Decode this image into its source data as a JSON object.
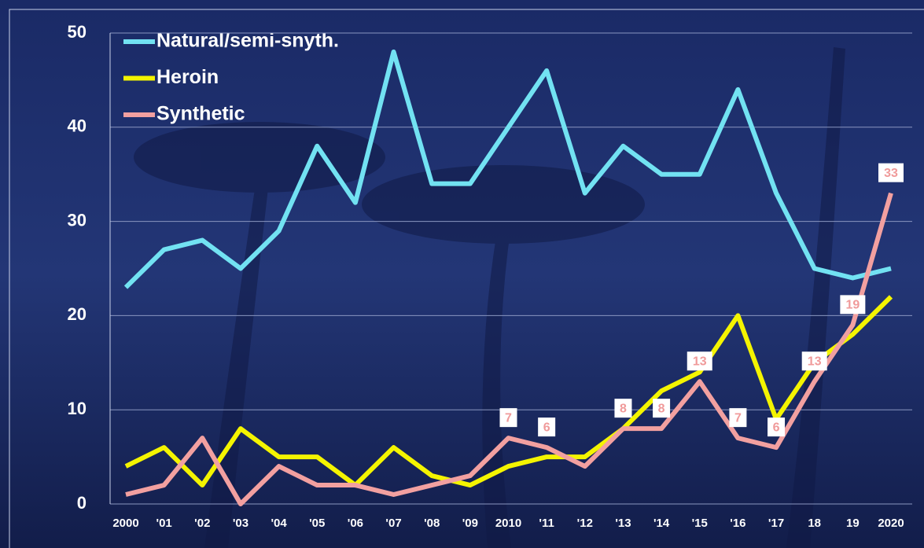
{
  "chart_data": {
    "type": "line",
    "categories": [
      "2000",
      "'01",
      "'02",
      "'03",
      "'04",
      "'05",
      "'06",
      "'07",
      "'08",
      "'09",
      "2010",
      "'11",
      "'12",
      "'13",
      "'14",
      "'15",
      "'16",
      "'17",
      "18",
      "19",
      "2020"
    ],
    "series": [
      {
        "name": "Natural/semi-snyth.",
        "color": "#72e2f2",
        "values": [
          23,
          27,
          28,
          25,
          29,
          38,
          32,
          48,
          34,
          34,
          40,
          46,
          33,
          38,
          35,
          35,
          44,
          33,
          25,
          24,
          25
        ]
      },
      {
        "name": "Heroin",
        "color": "#f4f400",
        "values": [
          4,
          6,
          2,
          8,
          5,
          5,
          2,
          6,
          3,
          2,
          4,
          5,
          5,
          8,
          12,
          14,
          20,
          9,
          15,
          18,
          22
        ]
      },
      {
        "name": "Synthetic",
        "color": "#f2a0a0",
        "values": [
          1,
          2,
          7,
          0,
          4,
          2,
          2,
          1,
          2,
          3,
          7,
          6,
          4,
          8,
          8,
          13,
          7,
          6,
          13,
          19,
          33
        ],
        "value_labels": [
          null,
          null,
          null,
          null,
          null,
          null,
          null,
          null,
          null,
          null,
          "7",
          "6",
          null,
          "8",
          "8",
          "13",
          "7",
          "6",
          "13",
          "19",
          "33"
        ]
      }
    ],
    "ylim": [
      0,
      50
    ],
    "yticks": [
      0,
      10,
      20,
      30,
      40,
      50
    ],
    "grid": true,
    "legend": "top-left"
  }
}
